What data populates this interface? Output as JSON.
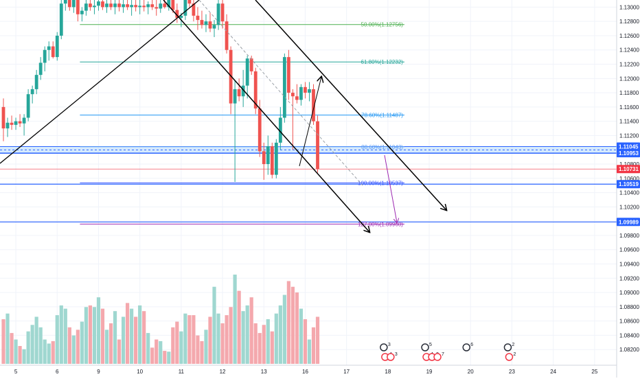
{
  "chart_data": {
    "type": "candlestick",
    "instrument_hint": "",
    "price_axis": {
      "ylim": [
        1.08,
        1.131
      ],
      "ticks": [
        "1.13000",
        "1.12800",
        "1.12600",
        "1.12400",
        "1.12200",
        "1.12000",
        "1.11800",
        "1.11600",
        "1.11400",
        "1.11200",
        "1.11000",
        "1.10800",
        "1.10600",
        "1.10400",
        "1.10200",
        "1.10000",
        "1.09800",
        "1.09600",
        "1.09400",
        "1.09200",
        "1.09000",
        "1.08800",
        "1.08600",
        "1.08400",
        "1.08200"
      ],
      "badges": [
        {
          "label": "1.11045",
          "value": 1.11045,
          "color": "#2962ff",
          "style": "fill"
        },
        {
          "label": "1.10953",
          "value": 1.10953,
          "color": "#2962ff",
          "style": "fill"
        },
        {
          "label": "1.10731",
          "value": 1.10731,
          "color": "#f23645",
          "style": "fill"
        },
        {
          "label": "1.10519",
          "value": 1.10519,
          "color": "#2962ff",
          "style": "fill"
        },
        {
          "label": "1.09989",
          "value": 1.09989,
          "color": "#2962ff",
          "style": "fill"
        }
      ]
    },
    "time_axis": {
      "labels": [
        {
          "label": "5",
          "slot": 3
        },
        {
          "label": "6",
          "slot": 13
        },
        {
          "label": "9",
          "slot": 23
        },
        {
          "label": "10",
          "slot": 33
        },
        {
          "label": "11",
          "slot": 43
        },
        {
          "label": "12",
          "slot": 53
        },
        {
          "label": "13",
          "slot": 63
        },
        {
          "label": "16",
          "slot": 73
        },
        {
          "label": "17",
          "slot": 83
        },
        {
          "label": "18",
          "slot": 93
        },
        {
          "label": "19",
          "slot": 103
        },
        {
          "label": "20",
          "slot": 113
        },
        {
          "label": "23",
          "slot": 123
        },
        {
          "label": "24",
          "slot": 133
        },
        {
          "label": "25",
          "slot": 143
        }
      ]
    },
    "candles": [
      {
        "o": 1.116,
        "h": 1.1172,
        "l": 1.1112,
        "c": 1.113
      },
      {
        "o": 1.113,
        "h": 1.1145,
        "l": 1.1118,
        "c": 1.1138
      },
      {
        "o": 1.1138,
        "h": 1.1148,
        "l": 1.1128,
        "c": 1.1135
      },
      {
        "o": 1.1135,
        "h": 1.1145,
        "l": 1.1128,
        "c": 1.114
      },
      {
        "o": 1.114,
        "h": 1.115,
        "l": 1.1132,
        "c": 1.1137
      },
      {
        "o": 1.1137,
        "h": 1.115,
        "l": 1.112,
        "c": 1.1145
      },
      {
        "o": 1.1145,
        "h": 1.1185,
        "l": 1.114,
        "c": 1.1178
      },
      {
        "o": 1.1178,
        "h": 1.119,
        "l": 1.1165,
        "c": 1.1185
      },
      {
        "o": 1.1185,
        "h": 1.1212,
        "l": 1.1178,
        "c": 1.1205
      },
      {
        "o": 1.1205,
        "h": 1.123,
        "l": 1.1198,
        "c": 1.1222
      },
      {
        "o": 1.1222,
        "h": 1.1245,
        "l": 1.121,
        "c": 1.124
      },
      {
        "o": 1.124,
        "h": 1.1252,
        "l": 1.1225,
        "c": 1.1245
      },
      {
        "o": 1.1245,
        "h": 1.1252,
        "l": 1.1228,
        "c": 1.123
      },
      {
        "o": 1.123,
        "h": 1.1265,
        "l": 1.1225,
        "c": 1.126
      },
      {
        "o": 1.126,
        "h": 1.1315,
        "l": 1.1255,
        "c": 1.1305
      },
      {
        "o": 1.1305,
        "h": 1.133,
        "l": 1.1295,
        "c": 1.132
      },
      {
        "o": 1.132,
        "h": 1.133,
        "l": 1.1295,
        "c": 1.13
      },
      {
        "o": 1.13,
        "h": 1.1318,
        "l": 1.1292,
        "c": 1.1312
      },
      {
        "o": 1.1312,
        "h": 1.1318,
        "l": 1.128,
        "c": 1.129
      },
      {
        "o": 1.129,
        "h": 1.13,
        "l": 1.128,
        "c": 1.1295
      },
      {
        "o": 1.1295,
        "h": 1.131,
        "l": 1.1288,
        "c": 1.1305
      },
      {
        "o": 1.1305,
        "h": 1.1315,
        "l": 1.1295,
        "c": 1.13
      },
      {
        "o": 1.13,
        "h": 1.131,
        "l": 1.129,
        "c": 1.1302
      },
      {
        "o": 1.1302,
        "h": 1.1312,
        "l": 1.1295,
        "c": 1.1308
      },
      {
        "o": 1.1308,
        "h": 1.1315,
        "l": 1.1296,
        "c": 1.13
      },
      {
        "o": 1.13,
        "h": 1.1312,
        "l": 1.1292,
        "c": 1.1305
      },
      {
        "o": 1.1305,
        "h": 1.1315,
        "l": 1.1296,
        "c": 1.13
      },
      {
        "o": 1.13,
        "h": 1.131,
        "l": 1.129,
        "c": 1.1305
      },
      {
        "o": 1.1305,
        "h": 1.1312,
        "l": 1.1294,
        "c": 1.13
      },
      {
        "o": 1.13,
        "h": 1.131,
        "l": 1.1292,
        "c": 1.1304
      },
      {
        "o": 1.1304,
        "h": 1.1312,
        "l": 1.1296,
        "c": 1.13
      },
      {
        "o": 1.13,
        "h": 1.131,
        "l": 1.1288,
        "c": 1.1303
      },
      {
        "o": 1.1303,
        "h": 1.1315,
        "l": 1.1294,
        "c": 1.13
      },
      {
        "o": 1.13,
        "h": 1.131,
        "l": 1.129,
        "c": 1.1302
      },
      {
        "o": 1.1302,
        "h": 1.1312,
        "l": 1.1294,
        "c": 1.13
      },
      {
        "o": 1.13,
        "h": 1.1308,
        "l": 1.129,
        "c": 1.1304
      },
      {
        "o": 1.1304,
        "h": 1.1312,
        "l": 1.1296,
        "c": 1.13
      },
      {
        "o": 1.13,
        "h": 1.131,
        "l": 1.1288,
        "c": 1.1298
      },
      {
        "o": 1.1298,
        "h": 1.1312,
        "l": 1.1292,
        "c": 1.1305
      },
      {
        "o": 1.1305,
        "h": 1.1318,
        "l": 1.1298,
        "c": 1.13
      },
      {
        "o": 1.13,
        "h": 1.1315,
        "l": 1.1295,
        "c": 1.131
      },
      {
        "o": 1.131,
        "h": 1.1318,
        "l": 1.1292,
        "c": 1.1296
      },
      {
        "o": 1.1296,
        "h": 1.1305,
        "l": 1.1278,
        "c": 1.1285
      },
      {
        "o": 1.1285,
        "h": 1.1292,
        "l": 1.1272,
        "c": 1.1288
      },
      {
        "o": 1.1288,
        "h": 1.1325,
        "l": 1.1282,
        "c": 1.132
      },
      {
        "o": 1.132,
        "h": 1.133,
        "l": 1.13,
        "c": 1.1305
      },
      {
        "o": 1.1305,
        "h": 1.1315,
        "l": 1.128,
        "c": 1.1288
      },
      {
        "o": 1.1288,
        "h": 1.13,
        "l": 1.1268,
        "c": 1.1282
      },
      {
        "o": 1.1282,
        "h": 1.1295,
        "l": 1.127,
        "c": 1.1275
      },
      {
        "o": 1.1275,
        "h": 1.129,
        "l": 1.1265,
        "c": 1.128
      },
      {
        "o": 1.128,
        "h": 1.1292,
        "l": 1.1265,
        "c": 1.127
      },
      {
        "o": 1.127,
        "h": 1.1282,
        "l": 1.1258,
        "c": 1.1275
      },
      {
        "o": 1.1275,
        "h": 1.131,
        "l": 1.1268,
        "c": 1.1305
      },
      {
        "o": 1.1305,
        "h": 1.131,
        "l": 1.127,
        "c": 1.128
      },
      {
        "o": 1.128,
        "h": 1.129,
        "l": 1.1235,
        "c": 1.124
      },
      {
        "o": 1.124,
        "h": 1.1245,
        "l": 1.115,
        "c": 1.1165
      },
      {
        "o": 1.1165,
        "h": 1.1198,
        "l": 1.1055,
        "c": 1.1185
      },
      {
        "o": 1.1185,
        "h": 1.12,
        "l": 1.1168,
        "c": 1.1175
      },
      {
        "o": 1.1175,
        "h": 1.1212,
        "l": 1.116,
        "c": 1.119
      },
      {
        "o": 1.119,
        "h": 1.1232,
        "l": 1.1172,
        "c": 1.1228
      },
      {
        "o": 1.1228,
        "h": 1.1232,
        "l": 1.1205,
        "c": 1.121
      },
      {
        "o": 1.121,
        "h": 1.1215,
        "l": 1.115,
        "c": 1.1158
      },
      {
        "o": 1.1158,
        "h": 1.117,
        "l": 1.109,
        "c": 1.1098
      },
      {
        "o": 1.1098,
        "h": 1.111,
        "l": 1.1058,
        "c": 1.108
      },
      {
        "o": 1.108,
        "h": 1.112,
        "l": 1.1065,
        "c": 1.1105
      },
      {
        "o": 1.1105,
        "h": 1.111,
        "l": 1.106,
        "c": 1.1065
      },
      {
        "o": 1.1065,
        "h": 1.1115,
        "l": 1.106,
        "c": 1.111
      },
      {
        "o": 1.111,
        "h": 1.116,
        "l": 1.11,
        "c": 1.1145
      },
      {
        "o": 1.1145,
        "h": 1.1235,
        "l": 1.1138,
        "c": 1.123
      },
      {
        "o": 1.123,
        "h": 1.124,
        "l": 1.117,
        "c": 1.118
      },
      {
        "o": 1.118,
        "h": 1.1185,
        "l": 1.11,
        "c": 1.1175
      },
      {
        "o": 1.1175,
        "h": 1.1192,
        "l": 1.1165,
        "c": 1.117
      },
      {
        "o": 1.117,
        "h": 1.1192,
        "l": 1.1162,
        "c": 1.1188
      },
      {
        "o": 1.1188,
        "h": 1.1195,
        "l": 1.1172,
        "c": 1.118
      },
      {
        "o": 1.118,
        "h": 1.1195,
        "l": 1.1168,
        "c": 1.1185
      },
      {
        "o": 1.1185,
        "h": 1.1192,
        "l": 1.1135,
        "c": 1.114
      },
      {
        "o": 1.114,
        "h": 1.1148,
        "l": 1.1068,
        "c": 1.1073
      }
    ],
    "volumes": [
      55,
      62,
      38,
      30,
      22,
      18,
      40,
      48,
      58,
      45,
      30,
      25,
      28,
      60,
      72,
      68,
      45,
      35,
      42,
      52,
      70,
      72,
      70,
      82,
      68,
      42,
      50,
      65,
      30,
      58,
      75,
      68,
      58,
      72,
      65,
      38,
      20,
      30,
      28,
      16,
      15,
      45,
      52,
      40,
      62,
      60,
      60,
      35,
      28,
      42,
      58,
      95,
      62,
      50,
      60,
      70,
      110,
      90,
      65,
      72,
      82,
      50,
      38,
      48,
      55,
      40,
      62,
      72,
      85,
      102,
      95,
      88,
      68,
      55,
      30,
      45,
      58
    ],
    "fib_levels": [
      {
        "label": "50.00%(1.12756)",
        "value": 1.12756,
        "color": "#4caf50"
      },
      {
        "label": "61.80%(1.12232)",
        "value": 1.12232,
        "color": "#26a69a"
      },
      {
        "label": "78.60%(1.11487)",
        "value": 1.11487,
        "color": "#2196f3"
      },
      {
        "label": "88.60%(1.11043)",
        "value": 1.11043,
        "color": "#5b9cf6"
      },
      {
        "label": "100.00%(1.10537)",
        "value": 1.10537,
        "color": "#3d5afe"
      },
      {
        "label": "127.00%(1.09960)",
        "value": 1.0996,
        "color": "#9c27b0"
      }
    ],
    "events": [
      {
        "slot": 93,
        "labels": [
          "3",
          "4",
          "3"
        ]
      },
      {
        "slot": 103,
        "labels": [
          "5",
          "4",
          "2",
          "7"
        ]
      },
      {
        "slot": 113,
        "labels": [
          "6"
        ]
      },
      {
        "slot": 123,
        "labels": [
          "2",
          "2"
        ]
      }
    ]
  }
}
